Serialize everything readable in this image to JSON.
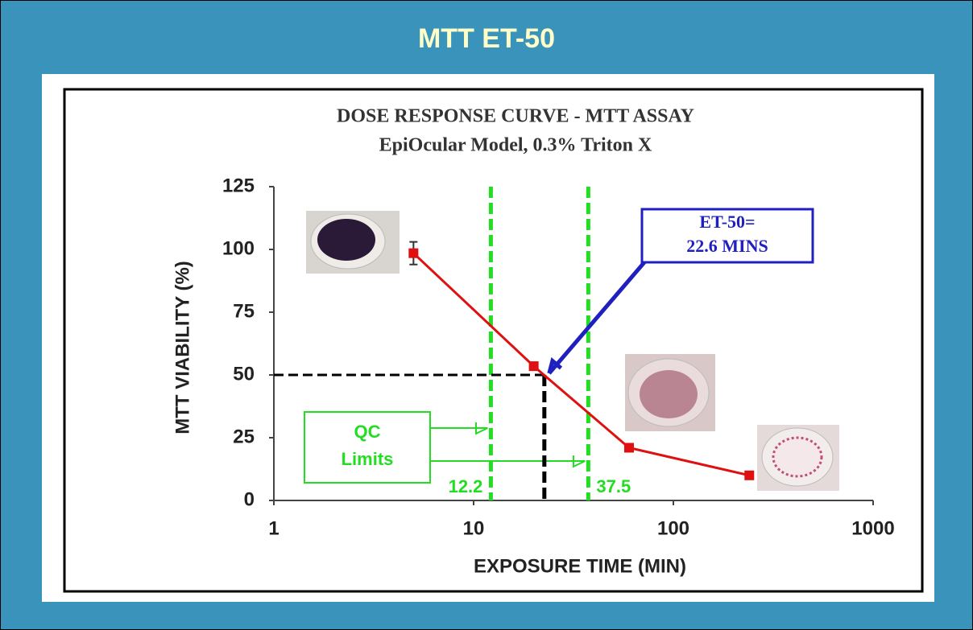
{
  "header": {
    "title": "MTT ET-50"
  },
  "chart_data": {
    "type": "line",
    "title": "DOSE RESPONSE CURVE - MTT ASSAY",
    "subtitle": "EpiOcular Model, 0.3% Triton X",
    "x_label": "EXPOSURE TIME (MIN)",
    "y_label": "MTT VIABILITY (%)",
    "x": [
      5,
      20,
      60,
      240
    ],
    "series": [
      {
        "color": "#e01010",
        "values": [
          98.5,
          53.5,
          21,
          10
        ],
        "errors": [
          4.5,
          null,
          null,
          null
        ]
      }
    ],
    "xlim": [
      1,
      1000
    ],
    "xticks": [
      1,
      10,
      100,
      1000
    ],
    "log_x": true,
    "ylim": [
      0,
      125
    ],
    "yticks": [
      0,
      25,
      50,
      75,
      100,
      125
    ],
    "grid": false,
    "qc_limits": [
      12.2,
      37.5
    ],
    "qc_color": "#22dd22",
    "qc_label": [
      "QC",
      "Limits"
    ],
    "reference_y": 50,
    "et50": 22.6,
    "et50_label": [
      "ET-50=",
      "22.6 MINS"
    ],
    "et50_color": "#2020c0"
  }
}
